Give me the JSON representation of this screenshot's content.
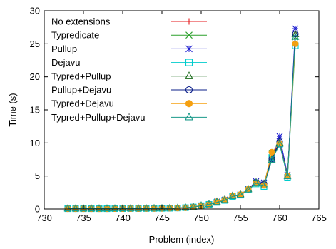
{
  "chart_data": {
    "type": "line",
    "xlabel": "Problem (index)",
    "ylabel": "Time (s)",
    "xlim": [
      730,
      765
    ],
    "ylim": [
      0,
      30
    ],
    "xticks": [
      730,
      735,
      740,
      745,
      750,
      755,
      760,
      765
    ],
    "yticks": [
      0,
      5,
      10,
      15,
      20,
      25,
      30
    ],
    "grid": false,
    "legend_position": "top-left",
    "x": [
      733,
      734,
      735,
      736,
      737,
      738,
      739,
      740,
      741,
      742,
      743,
      744,
      745,
      746,
      747,
      748,
      749,
      750,
      751,
      752,
      753,
      754,
      755,
      756,
      757,
      758,
      759,
      760,
      761,
      762
    ],
    "series": [
      {
        "name": "No extensions",
        "color": "#e41a1c",
        "marker": "plus",
        "values": [
          0.05,
          0.05,
          0.05,
          0.05,
          0.05,
          0.05,
          0.06,
          0.06,
          0.07,
          0.07,
          0.08,
          0.09,
          0.1,
          0.12,
          0.15,
          0.2,
          0.3,
          0.5,
          0.7,
          1.1,
          1.4,
          2.0,
          2.2,
          3.0,
          4.0,
          3.7,
          8.0,
          10.0,
          5.0,
          26.5
        ]
      },
      {
        "name": "Typredicate",
        "color": "#2ca02c",
        "marker": "cross",
        "values": [
          0.05,
          0.05,
          0.05,
          0.05,
          0.05,
          0.05,
          0.06,
          0.06,
          0.07,
          0.07,
          0.08,
          0.09,
          0.1,
          0.12,
          0.15,
          0.2,
          0.3,
          0.5,
          0.7,
          1.1,
          1.4,
          2.0,
          2.2,
          3.0,
          4.0,
          3.7,
          8.5,
          10.0,
          5.1,
          26.0
        ]
      },
      {
        "name": "Pullup",
        "color": "#1f1fd0",
        "marker": "star",
        "values": [
          0.05,
          0.05,
          0.05,
          0.05,
          0.05,
          0.05,
          0.06,
          0.06,
          0.07,
          0.07,
          0.08,
          0.09,
          0.1,
          0.12,
          0.15,
          0.2,
          0.3,
          0.5,
          0.7,
          1.1,
          1.4,
          2.0,
          2.2,
          3.0,
          4.2,
          4.0,
          7.5,
          11.0,
          5.2,
          27.3
        ]
      },
      {
        "name": "Dejavu",
        "color": "#00cccc",
        "marker": "square",
        "values": [
          0.05,
          0.05,
          0.05,
          0.05,
          0.05,
          0.05,
          0.06,
          0.06,
          0.07,
          0.07,
          0.08,
          0.09,
          0.1,
          0.12,
          0.15,
          0.2,
          0.3,
          0.5,
          0.7,
          1.0,
          1.3,
          1.9,
          2.1,
          2.9,
          3.8,
          3.4,
          7.8,
          9.8,
          4.8,
          24.7
        ]
      },
      {
        "name": "Typred+Pullup",
        "color": "#1a6b1a",
        "marker": "triangle",
        "values": [
          0.05,
          0.05,
          0.05,
          0.05,
          0.05,
          0.05,
          0.06,
          0.06,
          0.07,
          0.07,
          0.08,
          0.09,
          0.1,
          0.12,
          0.15,
          0.2,
          0.3,
          0.5,
          0.7,
          1.1,
          1.4,
          2.0,
          2.2,
          3.0,
          4.0,
          3.8,
          7.6,
          10.0,
          5.0,
          26.4
        ]
      },
      {
        "name": "Pullup+Dejavu",
        "color": "#0b1f8a",
        "marker": "circle",
        "values": [
          0.05,
          0.05,
          0.05,
          0.05,
          0.05,
          0.05,
          0.06,
          0.06,
          0.07,
          0.07,
          0.08,
          0.09,
          0.1,
          0.12,
          0.15,
          0.2,
          0.3,
          0.5,
          0.7,
          1.1,
          1.4,
          2.0,
          2.2,
          3.0,
          4.0,
          3.8,
          7.6,
          10.2,
          5.0,
          26.5
        ]
      },
      {
        "name": "Typred+Dejavu",
        "color": "#f5a011",
        "marker": "filled-circle",
        "values": [
          0.05,
          0.05,
          0.05,
          0.05,
          0.05,
          0.05,
          0.06,
          0.06,
          0.07,
          0.07,
          0.08,
          0.09,
          0.1,
          0.12,
          0.15,
          0.2,
          0.3,
          0.5,
          0.7,
          1.1,
          1.4,
          2.0,
          2.2,
          3.0,
          3.9,
          3.6,
          8.6,
          9.9,
          5.0,
          25.0
        ]
      },
      {
        "name": "Typred+Pullup+Dejavu",
        "color": "#1a9a8a",
        "marker": "triangle",
        "values": [
          0.05,
          0.05,
          0.05,
          0.05,
          0.05,
          0.05,
          0.06,
          0.06,
          0.07,
          0.07,
          0.08,
          0.09,
          0.1,
          0.12,
          0.15,
          0.2,
          0.3,
          0.5,
          0.7,
          1.0,
          1.3,
          1.9,
          2.1,
          2.9,
          3.9,
          3.5,
          7.4,
          9.8,
          4.9,
          26.0
        ]
      }
    ]
  }
}
